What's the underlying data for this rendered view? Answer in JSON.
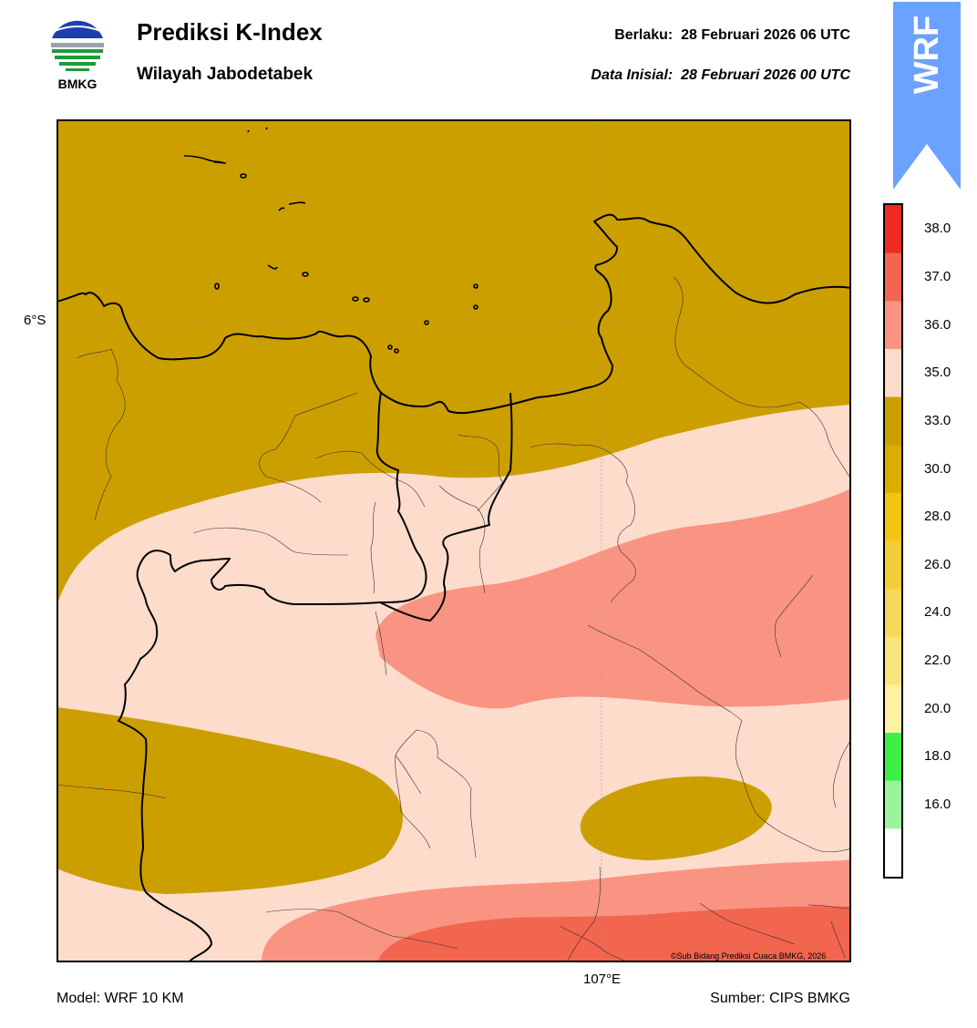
{
  "header": {
    "logo_text": "BMKG",
    "title": "Prediksi K-Index",
    "subtitle": "Wilayah Jabodetabek",
    "valid_label": "Berlaku:",
    "valid_time": "28 Februari 2026 06 UTC",
    "init_label": "Data Inisial:",
    "init_time": "28 Februari 2026 00 UTC",
    "badge_text": "WRF"
  },
  "map": {
    "lat_label": "6°S",
    "lon_label": "107°E",
    "credit": "©Sub Bidang Prediksi Cuaca BMKG, 2026",
    "contour_colors": {
      "33-35": "#cc9f00",
      "35-36": "#fddccc",
      "36-37": "#fa9482",
      "37-38": "#f2654f"
    }
  },
  "colorbar": {
    "ticks": [
      "38.0",
      "37.0",
      "36.0",
      "35.0",
      "33.0",
      "30.0",
      "28.0",
      "26.0",
      "24.0",
      "22.0",
      "20.0",
      "18.0",
      "16.0"
    ],
    "colors": [
      "#ed2b20",
      "#f2654f",
      "#fa9482",
      "#fddccc",
      "#cc9f00",
      "#ddad00",
      "#f2c511",
      "#f4ce36",
      "#f6d95a",
      "#f9e57d",
      "#fbf2a5",
      "#3cf047",
      "#9bf49d",
      "#ffffff"
    ]
  },
  "footer": {
    "model": "Model: WRF 10 KM",
    "source": "Sumber: CIPS BMKG"
  }
}
